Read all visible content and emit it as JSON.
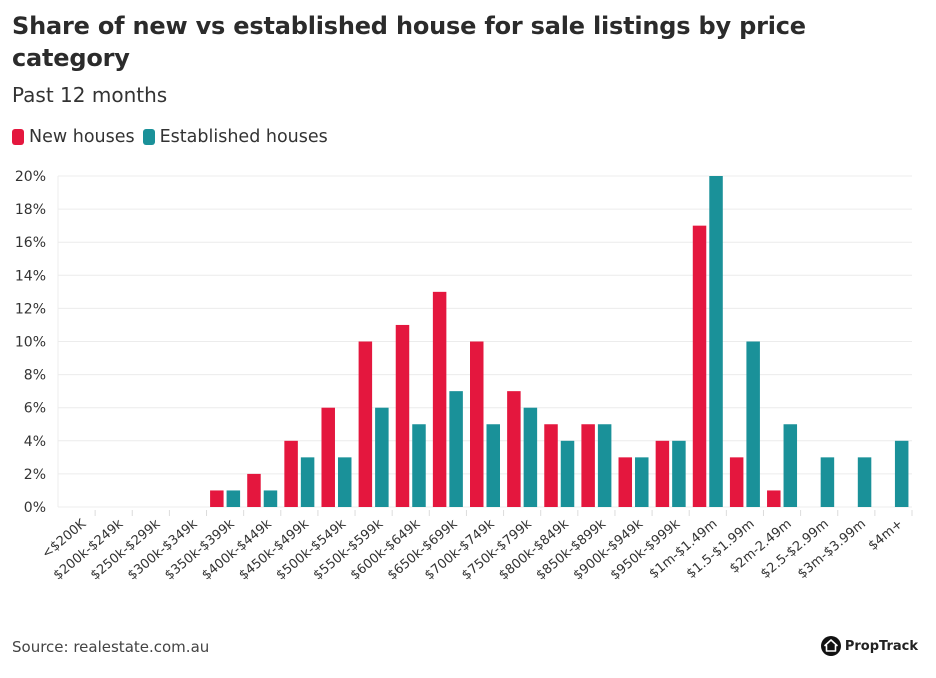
{
  "chart_data": {
    "type": "bar",
    "title": "Share of new vs established house for sale listings by price category",
    "subtitle": "Past 12 months",
    "xlabel": "",
    "ylabel": "",
    "ylim": [
      0,
      20
    ],
    "yticks": [
      "0%",
      "2%",
      "4%",
      "6%",
      "8%",
      "10%",
      "12%",
      "14%",
      "16%",
      "18%",
      "20%"
    ],
    "ytick_values": [
      0,
      2,
      4,
      6,
      8,
      10,
      12,
      14,
      16,
      18,
      20
    ],
    "grid": true,
    "legend_position": "top-left",
    "categories": [
      "<$200K",
      "$200k-$249k",
      "$250k-$299k",
      "$300k-$349k",
      "$350k-$399k",
      "$400k-$449k",
      "$450k-$499k",
      "$500k-$549k",
      "$550k-$599k",
      "$600k-$649k",
      "$650k-$699k",
      "$700k-$749k",
      "$750k-$799k",
      "$800k-$849k",
      "$850k-$899k",
      "$900k-$949k",
      "$950k-$999k",
      "$1m-$1.49m",
      "$1.5-$1.99m",
      "$2m-2.49m",
      "$2.5-$2.99m",
      "$3m-$3.99m",
      "$4m+"
    ],
    "series": [
      {
        "name": "New houses",
        "color": "#E4173E",
        "values": [
          0,
          0,
          0,
          0,
          1,
          2,
          4,
          6,
          10,
          11,
          13,
          10,
          7,
          5,
          5,
          3,
          4,
          17,
          3,
          1,
          0,
          0,
          0
        ]
      },
      {
        "name": "Established houses",
        "color": "#1A9199",
        "values": [
          0,
          0,
          0,
          0,
          1,
          1,
          3,
          3,
          6,
          5,
          7,
          5,
          6,
          4,
          5,
          3,
          4,
          20,
          10,
          5,
          3,
          3,
          4
        ]
      }
    ]
  },
  "legend": [
    {
      "label": "New houses",
      "color": "#E4173E"
    },
    {
      "label": "Established houses",
      "color": "#1A9199"
    }
  ],
  "footer": {
    "source": "Source: realestate.com.au",
    "brand": "PropTrack",
    "brand_icon": "house-icon"
  }
}
